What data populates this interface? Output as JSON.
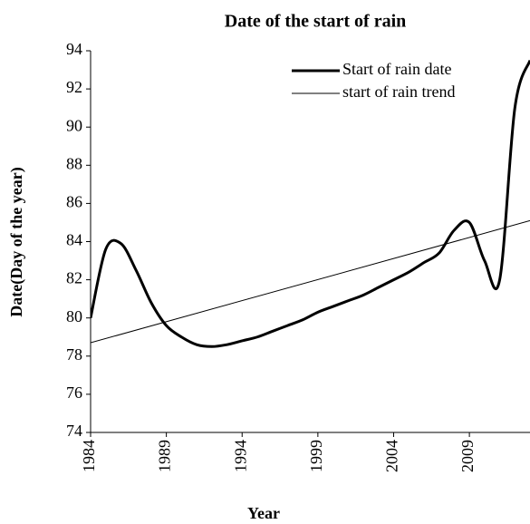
{
  "chart_data": {
    "type": "line",
    "title": "Date of the start of rain",
    "x_label": "Year",
    "y_label": "Date(Day of the year)",
    "x": [
      1984,
      1985,
      1986,
      1987,
      1988,
      1989,
      1990,
      1991,
      1992,
      1993,
      1994,
      1995,
      1996,
      1997,
      1998,
      1999,
      2000,
      2001,
      2002,
      2003,
      2004,
      2005,
      2006,
      2007,
      2008,
      2009,
      2010,
      2011,
      2012,
      2013
    ],
    "series": [
      {
        "name": "Start of rain date",
        "color": "#000000",
        "width": 3,
        "values": [
          80,
          83.6,
          83.9,
          82.5,
          80.8,
          79.6,
          79.0,
          78.6,
          78.5,
          78.6,
          78.8,
          79.0,
          79.3,
          79.6,
          79.9,
          80.3,
          80.6,
          80.9,
          81.2,
          81.6,
          82.0,
          82.4,
          82.9,
          83.4,
          84.6,
          85.0,
          83.0,
          82.0,
          91.0,
          93.5
        ]
      },
      {
        "name": "start of rain trend",
        "color": "#000000",
        "width": 1,
        "x": [
          1984,
          2013
        ],
        "values": [
          78.7,
          85.1
        ]
      }
    ],
    "xlim": [
      1984,
      2013
    ],
    "xticks": [
      1984,
      1989,
      1994,
      1999,
      2004,
      2009
    ],
    "ylim": [
      74,
      94
    ],
    "yticks": [
      74,
      76,
      78,
      80,
      82,
      84,
      86,
      88,
      90,
      92,
      94
    ],
    "legend": "upper right",
    "grid": false
  }
}
